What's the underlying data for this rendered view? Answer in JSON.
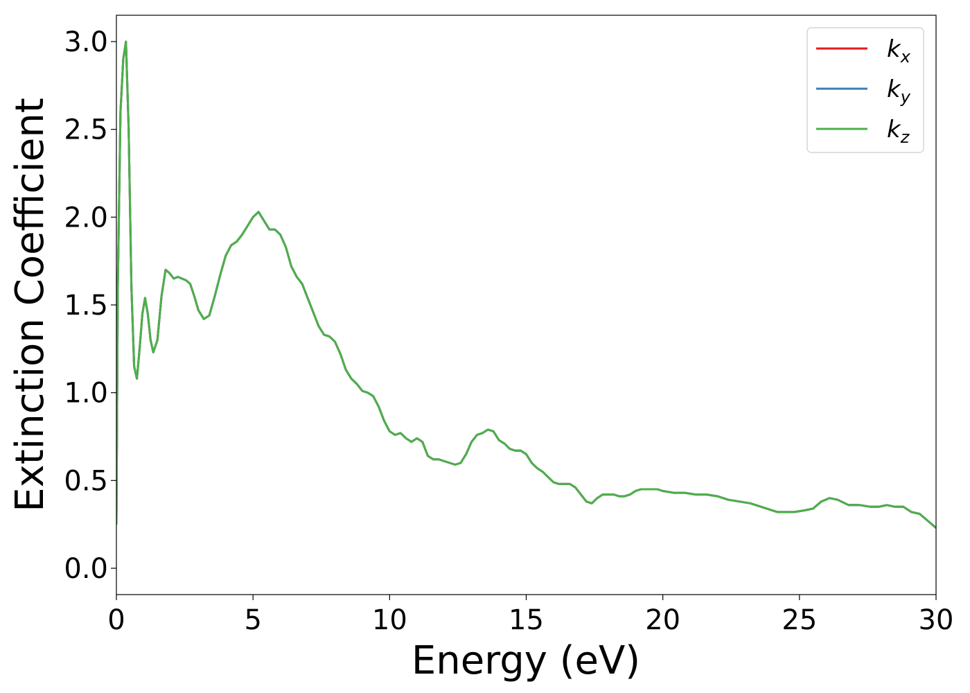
{
  "chart_data": {
    "type": "line",
    "title": "",
    "xlabel": "Energy (eV)",
    "ylabel": "Extinction Coefficient",
    "xlim": [
      0,
      30
    ],
    "ylim": [
      -0.15,
      3.15
    ],
    "xticks": [
      0,
      5,
      10,
      15,
      20,
      25,
      30
    ],
    "yticks": [
      0.0,
      0.5,
      1.0,
      1.5,
      2.0,
      2.5,
      3.0
    ],
    "xtick_labels": [
      "0",
      "5",
      "10",
      "15",
      "20",
      "25",
      "30"
    ],
    "ytick_labels": [
      "0.0",
      "0.5",
      "1.0",
      "1.5",
      "2.0",
      "2.5",
      "3.0"
    ],
    "grid": false,
    "legend": {
      "position": "top-right",
      "entries": [
        {
          "base": "k",
          "sub": "x",
          "color": "#e41a1c"
        },
        {
          "base": "k",
          "sub": "y",
          "color": "#377eb8"
        },
        {
          "base": "k",
          "sub": "z",
          "color": "#4daf4a"
        }
      ]
    },
    "x": [
      0,
      0.05,
      0.15,
      0.25,
      0.35,
      0.45,
      0.55,
      0.65,
      0.75,
      0.85,
      0.95,
      1.05,
      1.15,
      1.25,
      1.35,
      1.5,
      1.65,
      1.8,
      1.95,
      2.1,
      2.25,
      2.4,
      2.55,
      2.7,
      2.85,
      3.0,
      3.2,
      3.4,
      3.6,
      3.8,
      4.0,
      4.2,
      4.4,
      4.6,
      4.8,
      5.0,
      5.2,
      5.4,
      5.6,
      5.8,
      6.0,
      6.2,
      6.4,
      6.6,
      6.8,
      7.0,
      7.2,
      7.4,
      7.6,
      7.8,
      8.0,
      8.2,
      8.4,
      8.6,
      8.8,
      9.0,
      9.2,
      9.4,
      9.6,
      9.8,
      10.0,
      10.2,
      10.4,
      10.6,
      10.8,
      11.0,
      11.2,
      11.4,
      11.6,
      11.8,
      12.0,
      12.2,
      12.4,
      12.6,
      12.8,
      13.0,
      13.2,
      13.4,
      13.6,
      13.8,
      14.0,
      14.2,
      14.4,
      14.6,
      14.8,
      15.0,
      15.2,
      15.4,
      15.6,
      15.8,
      16.0,
      16.2,
      16.4,
      16.6,
      16.8,
      17.0,
      17.2,
      17.4,
      17.6,
      17.8,
      18.0,
      18.2,
      18.4,
      18.6,
      18.8,
      19.0,
      19.2,
      19.4,
      19.6,
      19.8,
      20.0,
      20.4,
      20.8,
      21.2,
      21.6,
      22.0,
      22.4,
      22.8,
      23.2,
      23.6,
      24.0,
      24.2,
      24.4,
      24.8,
      25.2,
      25.5,
      25.8,
      26.1,
      26.4,
      26.8,
      27.2,
      27.6,
      27.9,
      28.2,
      28.5,
      28.8,
      29.1,
      29.4,
      29.7,
      30.0
    ],
    "series": [
      {
        "name": "k_x",
        "color": "#e41a1c",
        "values": [
          0.25,
          1.6,
          2.6,
          2.9,
          3.0,
          2.5,
          1.6,
          1.15,
          1.08,
          1.25,
          1.45,
          1.54,
          1.45,
          1.3,
          1.23,
          1.3,
          1.55,
          1.7,
          1.68,
          1.65,
          1.66,
          1.65,
          1.64,
          1.62,
          1.55,
          1.47,
          1.42,
          1.44,
          1.55,
          1.67,
          1.78,
          1.84,
          1.86,
          1.9,
          1.95,
          2.0,
          2.03,
          1.98,
          1.93,
          1.93,
          1.9,
          1.83,
          1.72,
          1.66,
          1.62,
          1.54,
          1.46,
          1.38,
          1.33,
          1.32,
          1.29,
          1.22,
          1.13,
          1.08,
          1.05,
          1.01,
          1.0,
          0.98,
          0.92,
          0.84,
          0.78,
          0.76,
          0.77,
          0.74,
          0.72,
          0.74,
          0.72,
          0.64,
          0.62,
          0.62,
          0.61,
          0.6,
          0.59,
          0.6,
          0.65,
          0.72,
          0.76,
          0.77,
          0.79,
          0.78,
          0.73,
          0.71,
          0.68,
          0.67,
          0.67,
          0.65,
          0.6,
          0.57,
          0.55,
          0.52,
          0.49,
          0.48,
          0.48,
          0.48,
          0.46,
          0.42,
          0.38,
          0.37,
          0.4,
          0.42,
          0.42,
          0.42,
          0.41,
          0.41,
          0.42,
          0.44,
          0.45,
          0.45,
          0.45,
          0.45,
          0.44,
          0.43,
          0.43,
          0.42,
          0.42,
          0.41,
          0.39,
          0.38,
          0.37,
          0.35,
          0.33,
          0.32,
          0.32,
          0.32,
          0.33,
          0.34,
          0.38,
          0.4,
          0.39,
          0.36,
          0.36,
          0.35,
          0.35,
          0.36,
          0.35,
          0.35,
          0.32,
          0.31,
          0.27,
          0.23
        ]
      },
      {
        "name": "k_y",
        "color": "#377eb8",
        "values": [
          0.25,
          1.6,
          2.6,
          2.9,
          3.0,
          2.5,
          1.6,
          1.15,
          1.08,
          1.25,
          1.45,
          1.54,
          1.45,
          1.3,
          1.23,
          1.3,
          1.55,
          1.7,
          1.68,
          1.65,
          1.66,
          1.65,
          1.64,
          1.62,
          1.55,
          1.47,
          1.42,
          1.44,
          1.55,
          1.67,
          1.78,
          1.84,
          1.86,
          1.9,
          1.95,
          2.0,
          2.03,
          1.98,
          1.93,
          1.93,
          1.9,
          1.83,
          1.72,
          1.66,
          1.62,
          1.54,
          1.46,
          1.38,
          1.33,
          1.32,
          1.29,
          1.22,
          1.13,
          1.08,
          1.05,
          1.01,
          1.0,
          0.98,
          0.92,
          0.84,
          0.78,
          0.76,
          0.77,
          0.74,
          0.72,
          0.74,
          0.72,
          0.64,
          0.62,
          0.62,
          0.61,
          0.6,
          0.59,
          0.6,
          0.65,
          0.72,
          0.76,
          0.77,
          0.79,
          0.78,
          0.73,
          0.71,
          0.68,
          0.67,
          0.67,
          0.65,
          0.6,
          0.57,
          0.55,
          0.52,
          0.49,
          0.48,
          0.48,
          0.48,
          0.46,
          0.42,
          0.38,
          0.37,
          0.4,
          0.42,
          0.42,
          0.42,
          0.41,
          0.41,
          0.42,
          0.44,
          0.45,
          0.45,
          0.45,
          0.45,
          0.44,
          0.43,
          0.43,
          0.42,
          0.42,
          0.41,
          0.39,
          0.38,
          0.37,
          0.35,
          0.33,
          0.32,
          0.32,
          0.32,
          0.33,
          0.34,
          0.38,
          0.4,
          0.39,
          0.36,
          0.36,
          0.35,
          0.35,
          0.36,
          0.35,
          0.35,
          0.32,
          0.31,
          0.27,
          0.23
        ]
      },
      {
        "name": "k_z",
        "color": "#4daf4a",
        "values": [
          0.25,
          1.6,
          2.6,
          2.9,
          3.0,
          2.5,
          1.6,
          1.15,
          1.08,
          1.25,
          1.45,
          1.54,
          1.45,
          1.3,
          1.23,
          1.3,
          1.55,
          1.7,
          1.68,
          1.65,
          1.66,
          1.65,
          1.64,
          1.62,
          1.55,
          1.47,
          1.42,
          1.44,
          1.55,
          1.67,
          1.78,
          1.84,
          1.86,
          1.9,
          1.95,
          2.0,
          2.03,
          1.98,
          1.93,
          1.93,
          1.9,
          1.83,
          1.72,
          1.66,
          1.62,
          1.54,
          1.46,
          1.38,
          1.33,
          1.32,
          1.29,
          1.22,
          1.13,
          1.08,
          1.05,
          1.01,
          1.0,
          0.98,
          0.92,
          0.84,
          0.78,
          0.76,
          0.77,
          0.74,
          0.72,
          0.74,
          0.72,
          0.64,
          0.62,
          0.62,
          0.61,
          0.6,
          0.59,
          0.6,
          0.65,
          0.72,
          0.76,
          0.77,
          0.79,
          0.78,
          0.73,
          0.71,
          0.68,
          0.67,
          0.67,
          0.65,
          0.6,
          0.57,
          0.55,
          0.52,
          0.49,
          0.48,
          0.48,
          0.48,
          0.46,
          0.42,
          0.38,
          0.37,
          0.4,
          0.42,
          0.42,
          0.42,
          0.41,
          0.41,
          0.42,
          0.44,
          0.45,
          0.45,
          0.45,
          0.45,
          0.44,
          0.43,
          0.43,
          0.42,
          0.42,
          0.41,
          0.39,
          0.38,
          0.37,
          0.35,
          0.33,
          0.32,
          0.32,
          0.32,
          0.33,
          0.34,
          0.38,
          0.4,
          0.39,
          0.36,
          0.36,
          0.35,
          0.35,
          0.36,
          0.35,
          0.35,
          0.32,
          0.31,
          0.27,
          0.23
        ]
      }
    ]
  }
}
